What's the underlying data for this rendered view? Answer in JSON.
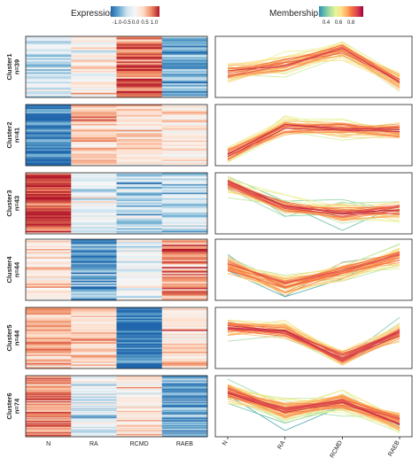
{
  "legends": {
    "expression": {
      "title": "Expression",
      "ticks": [
        "-1.0",
        "-0.5",
        "0.0",
        "0.5",
        "1.0"
      ],
      "colors": [
        "#2166ac",
        "#67a9cf",
        "#d1e5f0",
        "#f7f7f7",
        "#fddbc7",
        "#ef8a62",
        "#b2182b"
      ]
    },
    "membership": {
      "title": "Membership",
      "ticks": [
        "0.4",
        "0.6",
        "0.8"
      ],
      "colors": [
        "#3288bd",
        "#66c2a5",
        "#abdda4",
        "#e6f598",
        "#fee08b",
        "#fdae61",
        "#f46d43",
        "#d53e4f",
        "#9e0142"
      ]
    }
  },
  "chart_data": {
    "type": "heatmap",
    "conditions": [
      "N",
      "RA",
      "RCMD",
      "RAEB"
    ],
    "clusters": [
      {
        "name": "Cluster1",
        "n_label": "n=39",
        "n": 39,
        "centroid": [
          -0.4,
          0.2,
          1.2,
          -1.1
        ]
      },
      {
        "name": "Cluster2",
        "n_label": "n=41",
        "n": 41,
        "centroid": [
          -1.4,
          0.6,
          0.4,
          0.3
        ]
      },
      {
        "name": "Cluster3",
        "n_label": "n=43",
        "n": 43,
        "centroid": [
          1.4,
          -0.2,
          -0.7,
          -0.5
        ]
      },
      {
        "name": "Cluster4",
        "n_label": "n=44",
        "n": 44,
        "centroid": [
          0.3,
          -1.2,
          -0.1,
          1.0
        ]
      },
      {
        "name": "Cluster5",
        "n_label": "n=44",
        "n": 44,
        "centroid": [
          0.7,
          0.5,
          -1.4,
          0.3
        ]
      },
      {
        "name": "Cluster6",
        "n_label": "n=74",
        "n": 74,
        "centroid": [
          1.0,
          -0.3,
          0.3,
          -1.1
        ]
      }
    ]
  }
}
